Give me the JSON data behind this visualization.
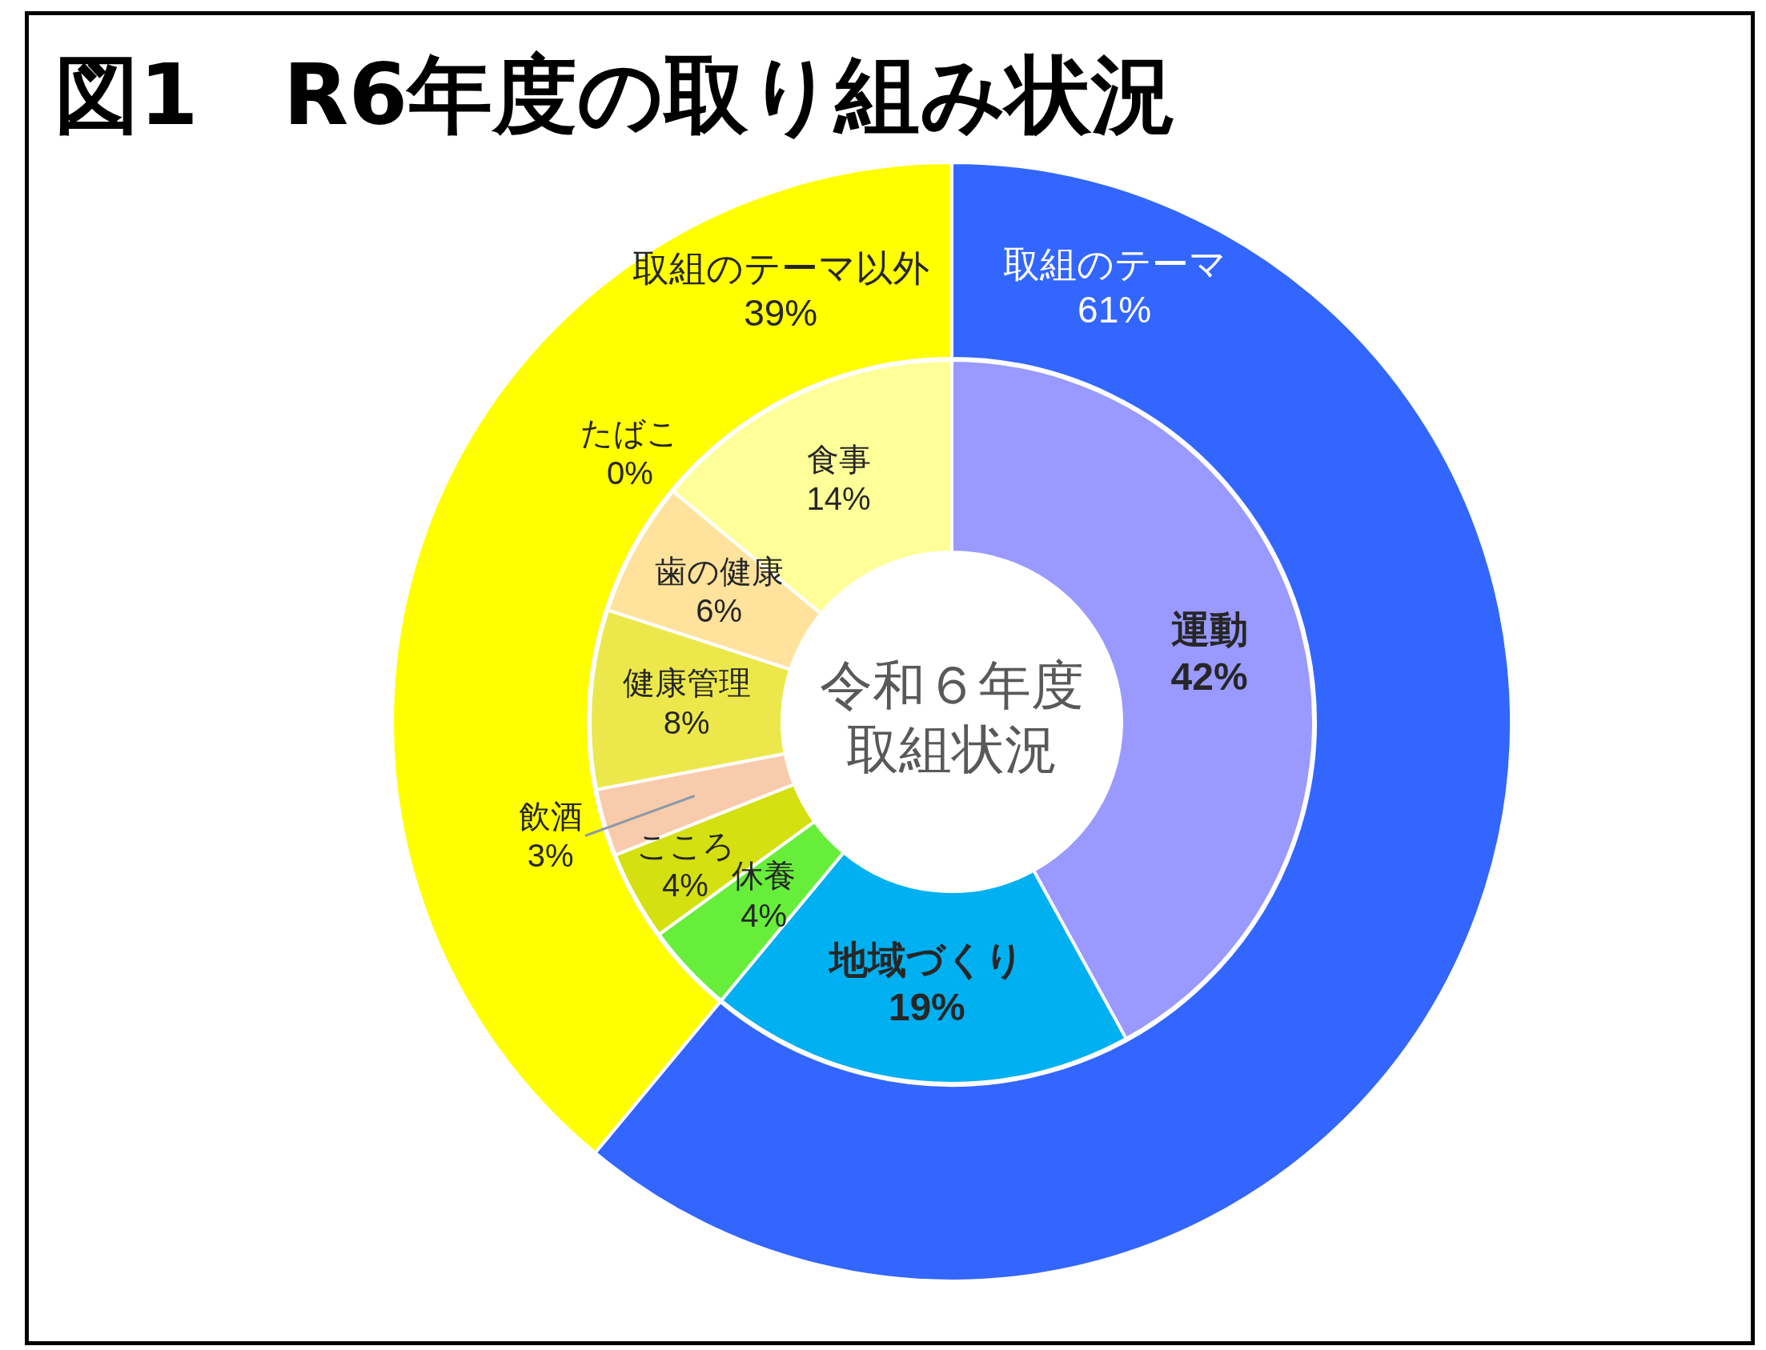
{
  "chart_data": [
    {
      "type": "donut",
      "title": "図1　R6年度の取り組み状況",
      "categories": [
        "取組のテーマ",
        "取組のテーマ以外"
      ],
      "values": [
        61,
        39
      ],
      "colors": [
        "#3366ff",
        "#ffff00"
      ],
      "value_labels": [
        "61%",
        "39%"
      ]
    },
    {
      "type": "donut",
      "categories": [
        "運動",
        "地域づくり",
        "休養",
        "こころ",
        "飲酒",
        "健康管理",
        "歯の健康",
        "たばこ",
        "食事"
      ],
      "values": [
        42,
        19,
        4,
        4,
        3,
        8,
        6,
        0,
        14
      ],
      "colors": [
        "#9999ff",
        "#00b0f0",
        "#66ee3a",
        "#d4e00f",
        "#f8cbad",
        "#ece84c",
        "#ffe29c",
        "#9c7a3c",
        "#ffff99"
      ],
      "value_labels": [
        "42%",
        "19%",
        "4%",
        "4%",
        "3%",
        "8%",
        "6%",
        "0%",
        "14%"
      ],
      "annotations": [
        "令和６年度取組状況"
      ]
    }
  ]
}
